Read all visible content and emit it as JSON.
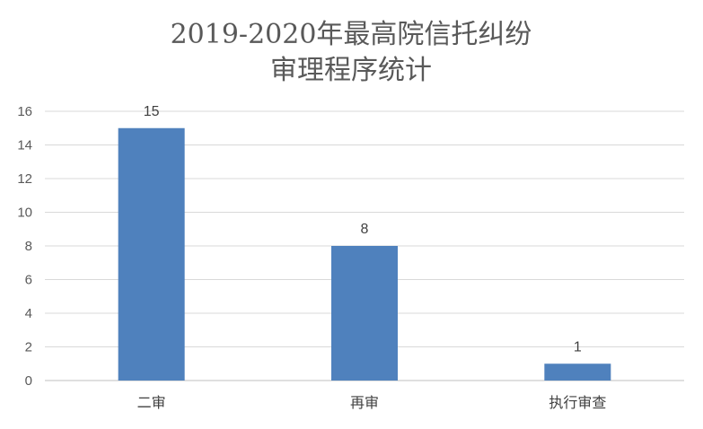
{
  "chart_data": {
    "type": "bar",
    "title_lines": [
      "2019-2020年最高院信托纠纷",
      "审理程序统计"
    ],
    "categories": [
      "二审",
      "再审",
      "执行审查"
    ],
    "values": [
      15,
      8,
      1
    ],
    "ylim": [
      0,
      16
    ],
    "yticks": [
      "0",
      "2",
      "4",
      "6",
      "8",
      "10",
      "12",
      "14",
      "16"
    ],
    "grid": true,
    "legend": "none",
    "bar_color": "#4f81bd"
  }
}
